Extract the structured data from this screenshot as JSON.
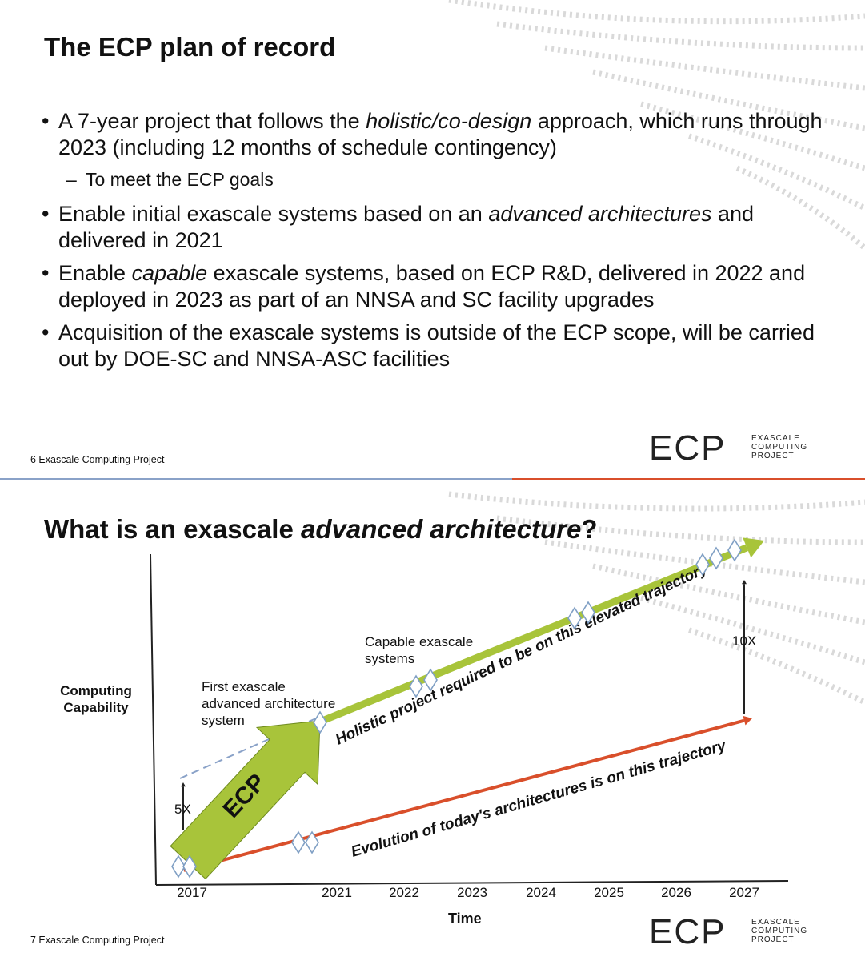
{
  "slide1": {
    "title": "The ECP plan of record",
    "bullets": {
      "b1_pre": "A 7-year project that follows the ",
      "b1_em": "holistic/co-design",
      "b1_post": " approach, which runs through 2023 (including 12 months of schedule contingency)",
      "b1_sub": "To meet the ECP goals",
      "b2_pre": "Enable initial exascale systems based on an ",
      "b2_em": "advanced architectures",
      "b2_post": " and delivered in 2021",
      "b3_pre": "Enable ",
      "b3_em": "capable",
      "b3_post": " exascale systems, based on ECP R&D, delivered in 2022 and deployed in 2023 as part of an NNSA and SC facility upgrades",
      "b4": "Acquisition of the exascale systems is outside of the ECP scope, will be carried out by DOE-SC and NNSA-ASC facilities"
    },
    "footer": "6  Exascale Computing Project"
  },
  "slide2": {
    "title_pre": "What is an exascale ",
    "title_em": "advanced architecture",
    "title_post": "?",
    "footer": "7  Exascale Computing Project"
  },
  "logo": {
    "mark": "ECP",
    "line1": "EXASCALE",
    "line2": "COMPUTING",
    "line3": "PROJECT"
  },
  "chart_data": {
    "type": "line",
    "ylabel": "Computing Capability",
    "xlabel": "Time",
    "categories": [
      "2017",
      "2021",
      "2022",
      "2023",
      "2024",
      "2025",
      "2026",
      "2027"
    ],
    "series": [
      {
        "name": "Holistic project required to be on this elevated trajectory",
        "color": "#a8c43a"
      },
      {
        "name": "Evolution of today's architectures is on this trajectory",
        "color": "#d94f2b"
      }
    ],
    "annotations": {
      "first_system": "First exascale advanced architecture system",
      "first_system_l1": "First exascale",
      "first_system_l2": "advanced architecture",
      "first_system_l3": "system",
      "capable": "Capable exascale systems",
      "capable_l1": "Capable exascale",
      "capable_l2": "systems",
      "arrow_label": "ECP",
      "gap_small": "5X",
      "gap_large": "10X"
    },
    "colors": {
      "green": "#a8c43a",
      "red": "#d94f2b",
      "diamond": "#7f9fc4"
    }
  }
}
